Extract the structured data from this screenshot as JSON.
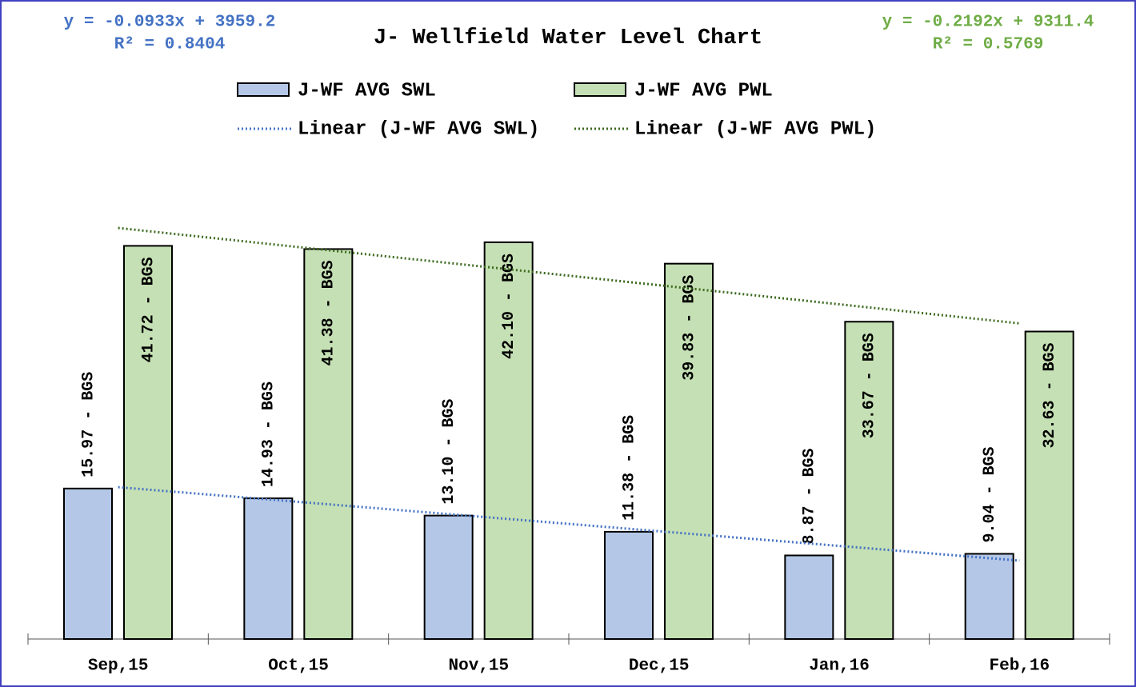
{
  "chart_data": {
    "type": "bar",
    "title": "J- Wellfield Water Level Chart",
    "categories": [
      "Sep,15",
      "Oct,15",
      "Nov,15",
      "Dec,15",
      "Jan,16",
      "Feb,16"
    ],
    "series": [
      {
        "name": "J-WF AVG SWL",
        "color": "#b4c7e7",
        "values": [
          15.97,
          14.93,
          13.1,
          11.38,
          8.87,
          9.04
        ],
        "value_labels": [
          "15.97 - BGS",
          "14.93 - BGS",
          "13.10 - BGS",
          "11.38 - BGS",
          "8.87 - BGS",
          "9.04 - BGS"
        ],
        "trendline": {
          "name": "Linear (J-WF AVG SWL)",
          "color": "#4472c4",
          "equation": "y = -0.0933x + 3959.2",
          "r2": "R² = 0.8404"
        }
      },
      {
        "name": "J-WF AVG PWL",
        "color": "#c5e0b4",
        "values": [
          41.72,
          41.38,
          42.1,
          39.83,
          33.67,
          32.63
        ],
        "value_labels": [
          "41.72 - BGS",
          "41.38 - BGS",
          "42.10 - BGS",
          "39.83 - BGS",
          "33.67 - BGS",
          "32.63 - BGS"
        ],
        "trendline": {
          "name": "Linear (J-WF AVG PWL)",
          "color": "#3d6b1f",
          "equation": "y = -0.2192x + 9311.4",
          "r2": "R² = 0.5769",
          "equation_color": "#70ad47"
        }
      }
    ],
    "ylim": [
      0,
      60
    ]
  }
}
